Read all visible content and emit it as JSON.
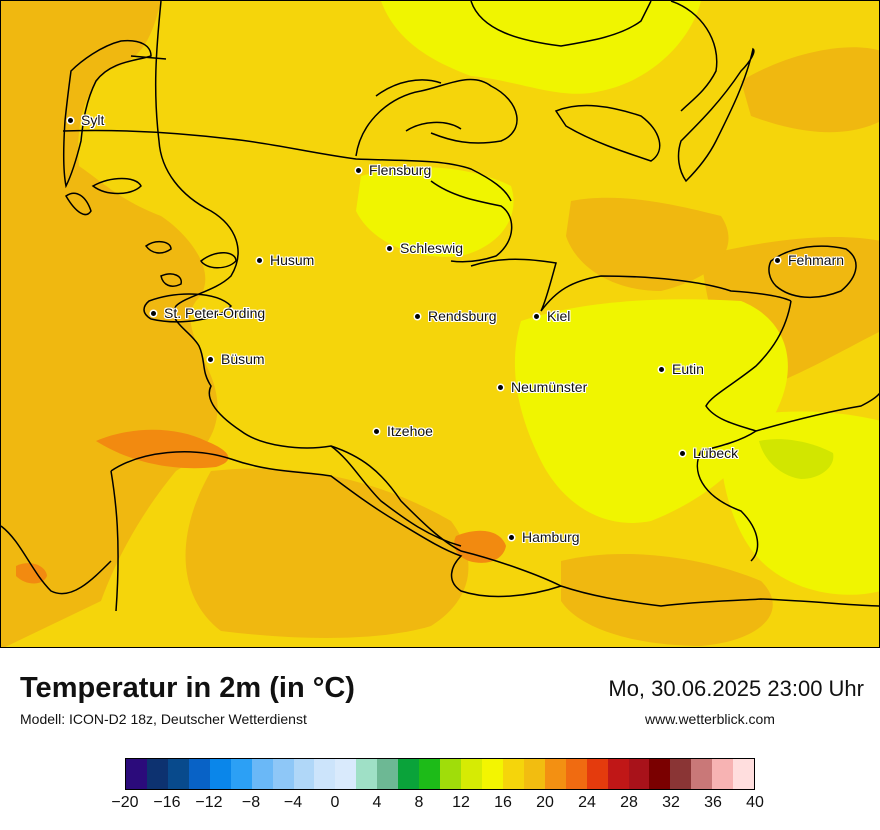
{
  "map": {
    "cities": [
      {
        "name": "Sylt"
      },
      {
        "name": "Flensburg"
      },
      {
        "name": "Schleswig"
      },
      {
        "name": "Husum"
      },
      {
        "name": "Fehmarn"
      },
      {
        "name": "St. Peter-Ording"
      },
      {
        "name": "Rendsburg"
      },
      {
        "name": "Kiel"
      },
      {
        "name": "Büsum"
      },
      {
        "name": "Eutin"
      },
      {
        "name": "Neumünster"
      },
      {
        "name": "Itzehoe"
      },
      {
        "name": "Lübeck"
      },
      {
        "name": "Hamburg"
      }
    ],
    "colors": {
      "land_base": "#f5d50b",
      "temp_16_18": "#f0f500",
      "temp_20_22": "#f0b810",
      "temp_22_24": "#f28a10",
      "temp_14_16": "#d2e600",
      "coastline": "#000000"
    }
  },
  "footer": {
    "title": "Temperatur in 2m (in °C)",
    "model": "Modell: ICON-D2 18z, Deutscher Wetterdienst",
    "datetime": "Mo, 30.06.2025 23:00 Uhr",
    "website": "www.wetterblick.com"
  },
  "legend": {
    "min": -20,
    "max": 40,
    "ticks": [
      "−20",
      "−16",
      "−12",
      "−8",
      "−4",
      "0",
      "4",
      "8",
      "12",
      "16",
      "20",
      "24",
      "28",
      "32",
      "36",
      "40"
    ],
    "colors": [
      "#2b0b7b",
      "#0d3270",
      "#084a8c",
      "#0862c6",
      "#0a86ea",
      "#2ca0f5",
      "#6ab8f7",
      "#8ec7f7",
      "#b0d7f8",
      "#cce4fb",
      "#d9eafc",
      "#9fe0c6",
      "#6db894",
      "#0aa33a",
      "#1dbb18",
      "#a0dd0a",
      "#d6eb04",
      "#f3f501",
      "#f5d50b",
      "#f2bd10",
      "#f39012",
      "#f06b11",
      "#e43b0d",
      "#c01717",
      "#a8121a",
      "#7a0000",
      "#8a3535",
      "#c97878",
      "#f7b3b3",
      "#ffdede"
    ]
  }
}
